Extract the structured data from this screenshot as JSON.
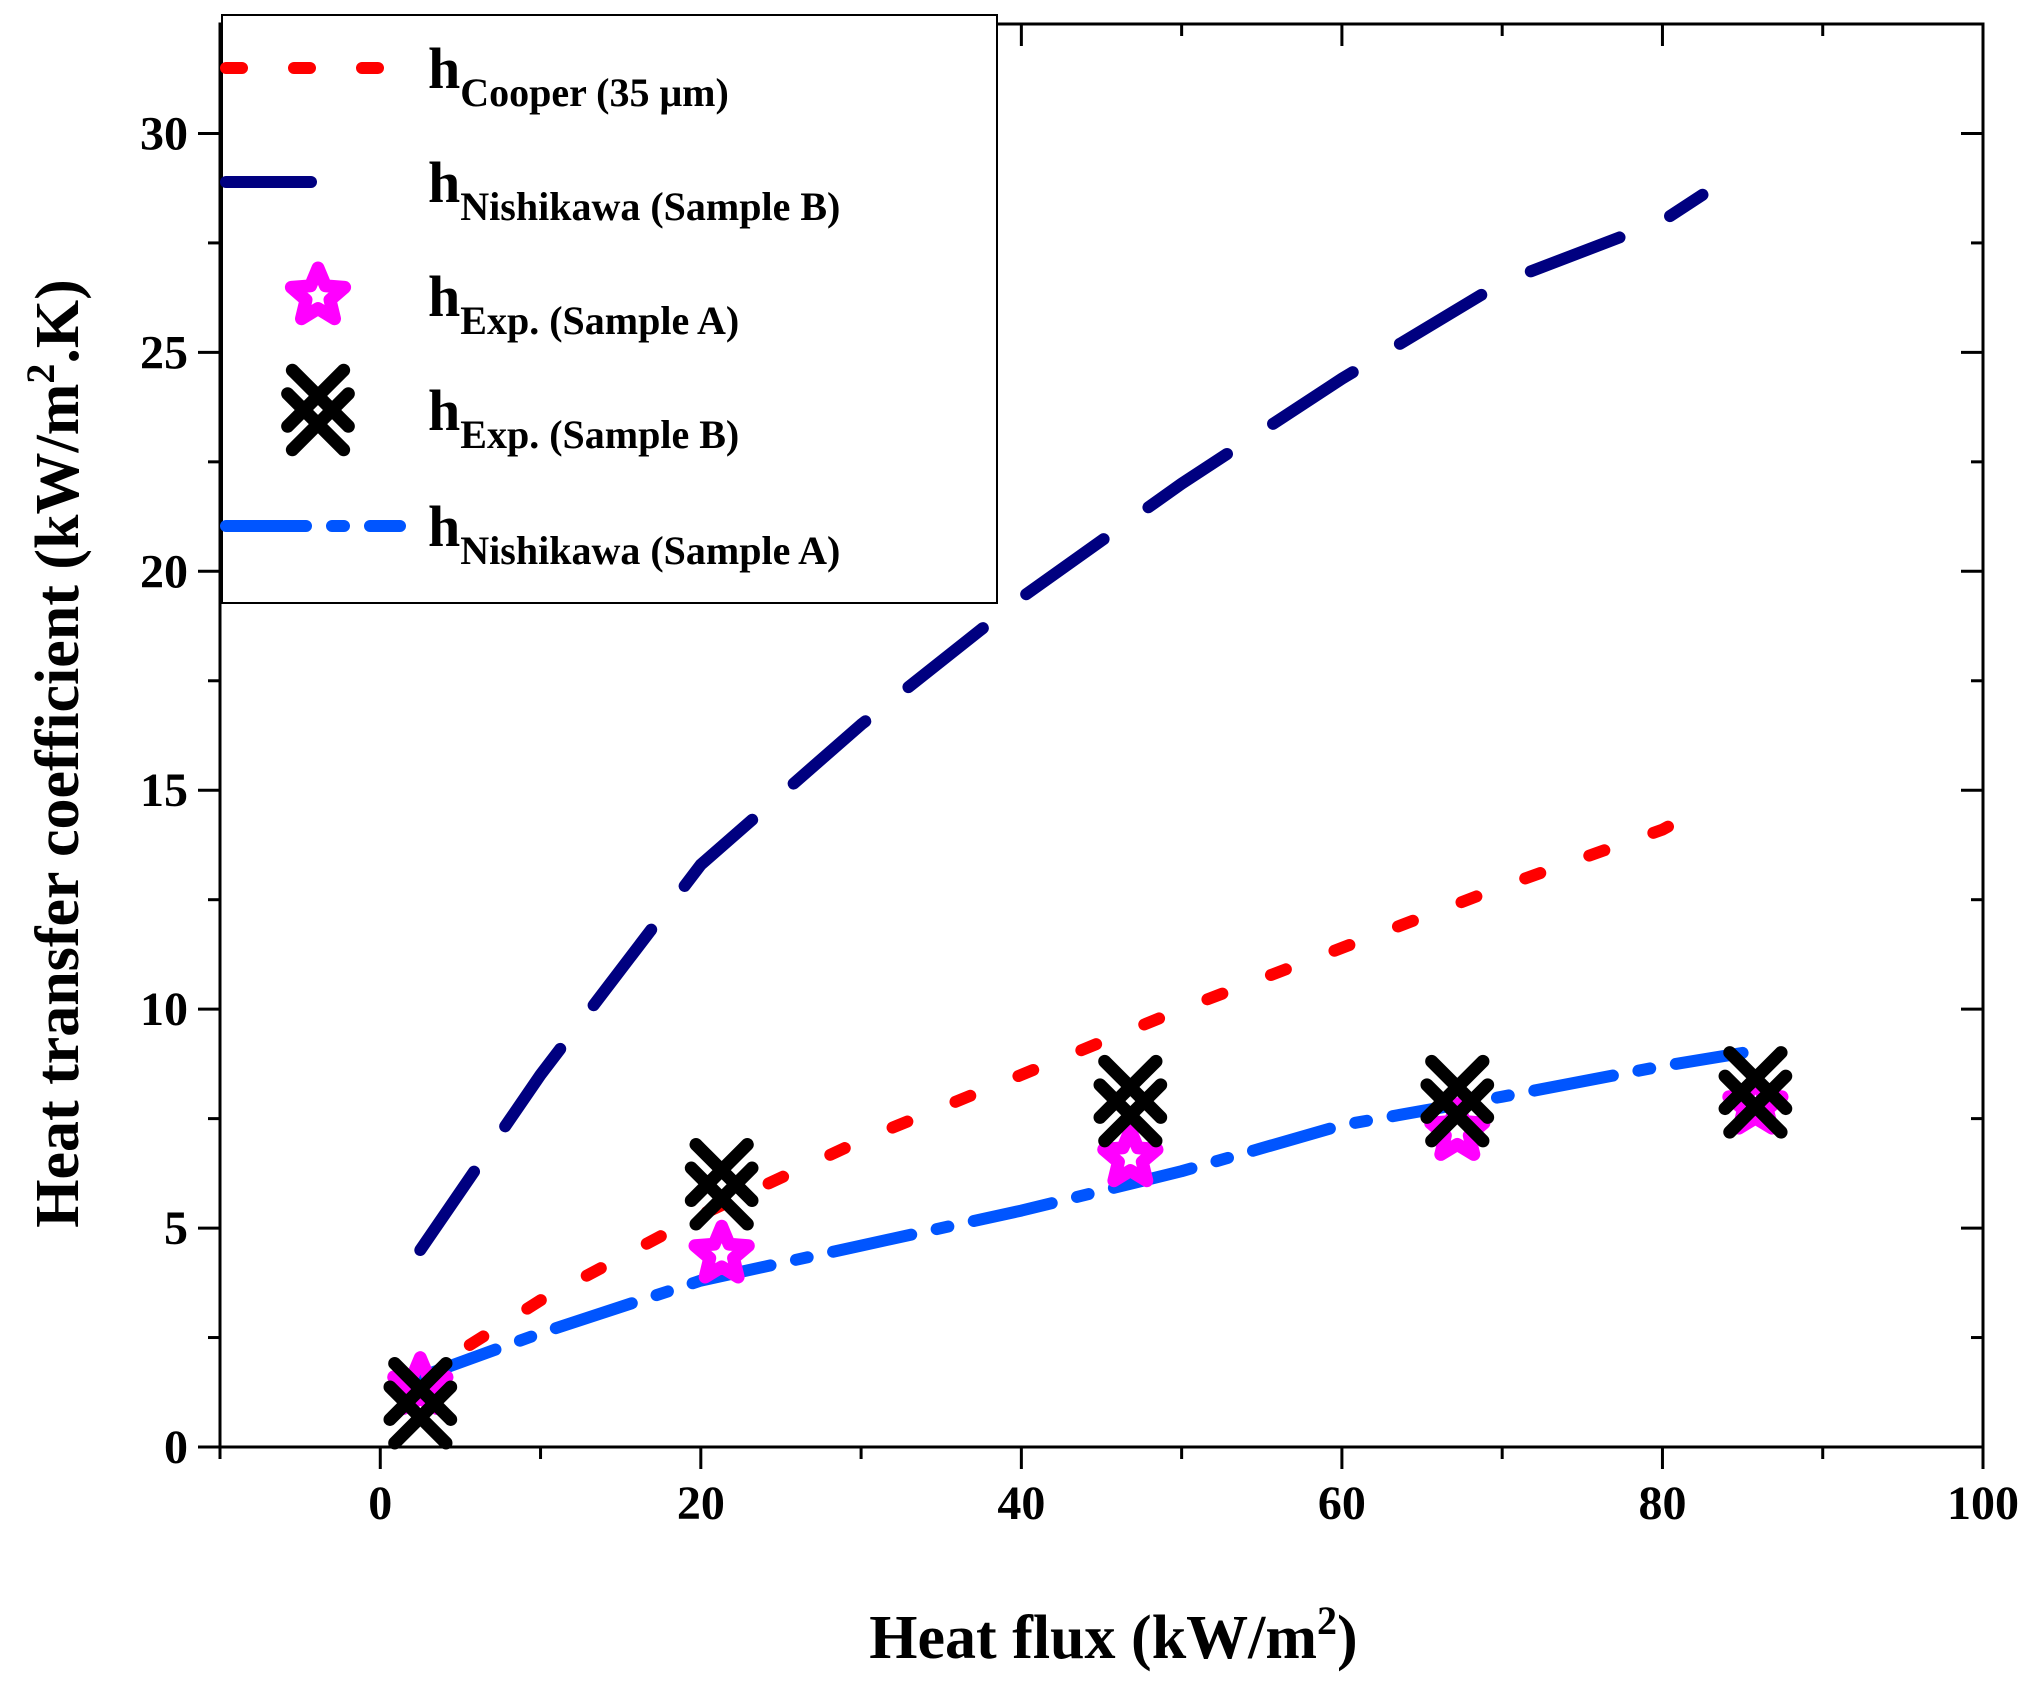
{
  "chart_data": {
    "type": "line",
    "title": "",
    "xlabel": "Heat flux (kW/m",
    "xlabel_sup": "2",
    "xlabel_end": ")",
    "ylabel": "Heat transfer coefficient (kW/m",
    "ylabel_sup": "2",
    "ylabel_end": ".K)",
    "xlim": [
      -10,
      100
    ],
    "ylim": [
      0,
      32.5
    ],
    "xticks": [
      0,
      20,
      40,
      60,
      80,
      100
    ],
    "yticks": [
      0,
      5,
      10,
      15,
      20,
      25,
      30
    ],
    "grid": false,
    "legend_position": "top-left",
    "series": [
      {
        "name": "Cooper (35 μm)",
        "label_main": "h",
        "label_sub": "Cooper (35 μm)",
        "kind": "line",
        "style": "dot",
        "color": "#ff0000",
        "x": [
          2,
          10,
          20,
          30,
          40,
          50,
          60,
          70,
          80,
          82
        ],
        "y": [
          1.5,
          3.35,
          5.3,
          7.0,
          8.5,
          10.0,
          11.4,
          12.8,
          14.1,
          14.5
        ]
      },
      {
        "name": "Nishikawa (Sample B)",
        "label_main": "h",
        "label_sub": "Nishikawa (Sample B)",
        "kind": "line",
        "style": "long-dash",
        "color": "#000080",
        "x": [
          2.5,
          10,
          20,
          30,
          40,
          50,
          60,
          70,
          80,
          82.5
        ],
        "y": [
          4.5,
          8.5,
          13.3,
          16.5,
          19.4,
          22.0,
          24.4,
          26.6,
          28.0,
          28.6
        ]
      },
      {
        "name": "Exp. (Sample A)",
        "label_main": "h",
        "label_sub": "Exp. (Sample A)",
        "kind": "scatter",
        "marker": "star",
        "color": "#ff00ff",
        "x": [
          2.5,
          21.3,
          46.8,
          67.2,
          85.8
        ],
        "y": [
          1.4,
          4.4,
          6.6,
          7.2,
          7.8
        ]
      },
      {
        "name": "Exp. (Sample B)",
        "label_main": "h",
        "label_sub": "Exp. (Sample B)",
        "kind": "scatter",
        "marker": "double-x",
        "color": "#000000",
        "x": [
          2.5,
          21.3,
          46.8,
          67.2,
          85.8
        ],
        "y": [
          1.0,
          6.0,
          7.9,
          7.9,
          8.1
        ]
      },
      {
        "name": "Nishikawa (Sample A)",
        "label_main": "h",
        "label_sub": "Nishikawa (Sample A)",
        "kind": "line",
        "style": "dash-dot",
        "color": "#0055ff",
        "x": [
          2.5,
          10,
          20,
          30,
          40,
          50,
          60,
          70,
          80,
          85
        ],
        "y": [
          1.6,
          2.6,
          3.8,
          4.6,
          5.4,
          6.3,
          7.35,
          8.0,
          8.7,
          9.0
        ]
      }
    ]
  }
}
